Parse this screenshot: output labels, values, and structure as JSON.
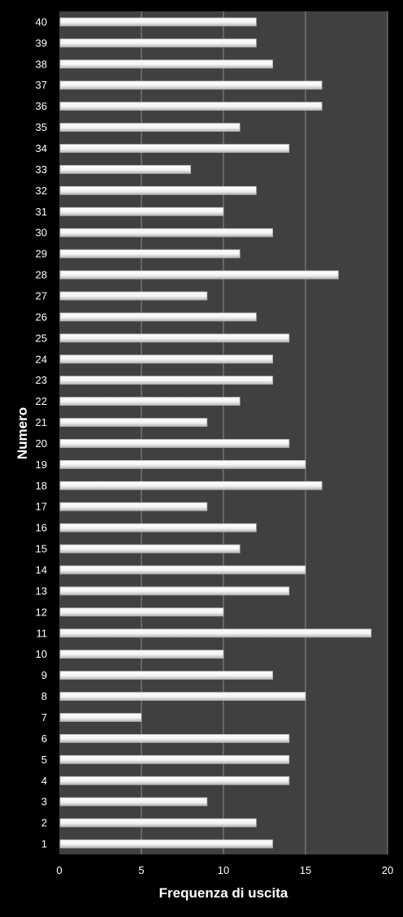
{
  "chart_data": {
    "type": "bar",
    "orientation": "horizontal",
    "categories": [
      "1",
      "2",
      "3",
      "4",
      "5",
      "6",
      "7",
      "8",
      "9",
      "10",
      "11",
      "12",
      "13",
      "14",
      "15",
      "16",
      "17",
      "18",
      "19",
      "20",
      "21",
      "22",
      "23",
      "24",
      "25",
      "26",
      "27",
      "28",
      "29",
      "30",
      "31",
      "32",
      "33",
      "34",
      "35",
      "36",
      "37",
      "38",
      "39",
      "40"
    ],
    "values": [
      13,
      12,
      9,
      14,
      14,
      14,
      5,
      15,
      13,
      10,
      19,
      10,
      14,
      15,
      11,
      12,
      9,
      16,
      15,
      14,
      9,
      11,
      13,
      13,
      14,
      12,
      9,
      17,
      11,
      13,
      10,
      12,
      8,
      14,
      11,
      16,
      16,
      13,
      12,
      12
    ],
    "xlabel": "Frequenza di uscita",
    "ylabel": "Numero",
    "xlim": [
      0,
      20
    ],
    "xticks": [
      0,
      5,
      10,
      15,
      20
    ],
    "grid": "vertical",
    "legend": "none",
    "colors": {
      "page_background": "#000000",
      "plot_background": "#404040",
      "gridline": "#8c8c8c",
      "bar_fill": "#ffffff",
      "bar_shade": "#b4b4b4",
      "text": "#ffffff"
    }
  }
}
